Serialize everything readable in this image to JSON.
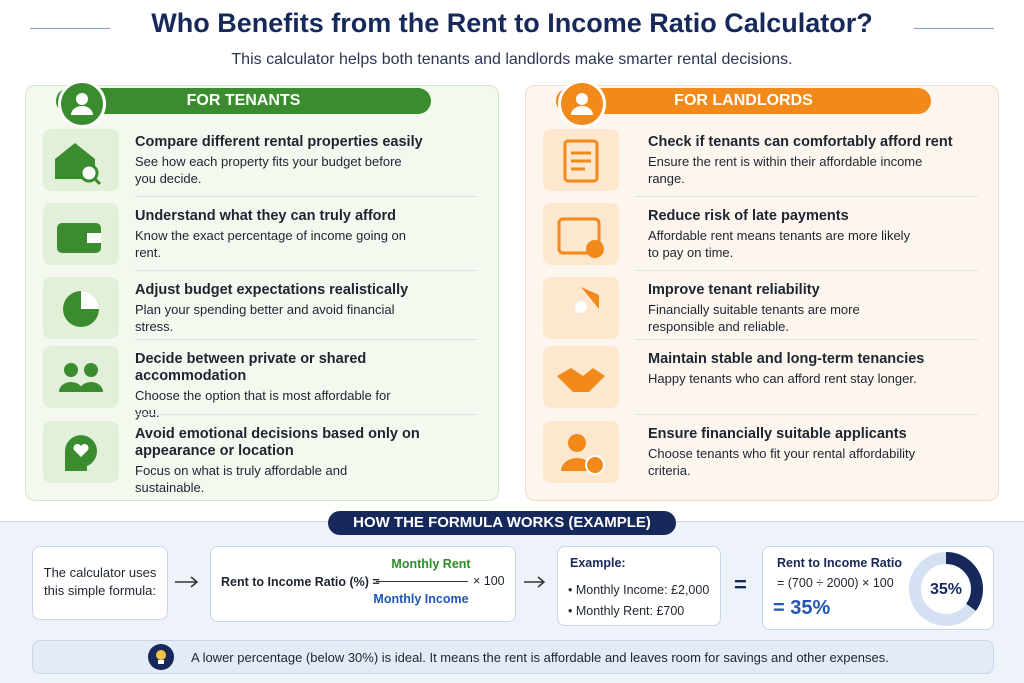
{
  "header": {
    "title": "Who Benefits from the Rent to Income Ratio Calculator?",
    "subtitle": "This calculator helps both tenants and landlords make smarter rental decisions."
  },
  "tenants": {
    "heading": "FOR TENANTS",
    "items": [
      {
        "title": "Compare different rental properties easily",
        "text": "See how each property fits your budget before you decide."
      },
      {
        "title": "Understand what they can truly afford",
        "text": "Know the exact percentage of income going on rent."
      },
      {
        "title": "Adjust budget expectations realistically",
        "text": "Plan your spending better and avoid financial stress."
      },
      {
        "title": "Decide between private or shared accommodation",
        "text": "Choose the option that is most affordable for you."
      },
      {
        "title": "Avoid emotional decisions based only on appearance or location",
        "text": "Focus on what is truly affordable and sustainable."
      }
    ]
  },
  "landlords": {
    "heading": "FOR LANDLORDS",
    "items": [
      {
        "title": "Check if tenants can comfortably afford rent",
        "text": "Ensure the rent is within their affordable income range."
      },
      {
        "title": "Reduce risk of late payments",
        "text": "Affordable rent means tenants are more likely to pay on time."
      },
      {
        "title": "Improve tenant reliability",
        "text": "Financially suitable tenants are more responsible and reliable."
      },
      {
        "title": "Maintain stable and long-term tenancies",
        "text": "Happy tenants who can afford rent stay longer."
      },
      {
        "title": "Ensure financially suitable applicants",
        "text": "Choose tenants who fit your rental affordability criteria."
      }
    ]
  },
  "formula": {
    "heading": "HOW THE FORMULA WORKS (EXAMPLE)",
    "intro": "The calculator uses this simple formula:",
    "label": "Rent to Income Ratio (%) =",
    "numerator": "Monthly Rent",
    "denominator": "Monthly Income",
    "multiplier": "× 100",
    "example_heading": "Example:",
    "example_items": [
      "Monthly Income: £2,000",
      "Monthly Rent: £700"
    ],
    "equals": "=",
    "result_title": "Rent to Income Ratio",
    "result_calc": "= (700 ÷ 2000) × 100",
    "result_value": "= 35%",
    "donut": {
      "value": 35,
      "label": "35%"
    }
  },
  "note": "A lower percentage (below 30%) is ideal. It means the rent is affordable and leaves room for savings and other expenses."
}
